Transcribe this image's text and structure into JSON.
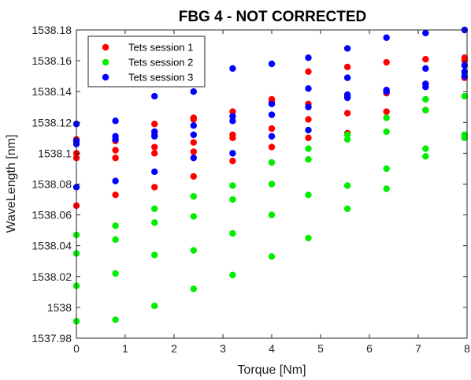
{
  "chart_data": {
    "type": "scatter",
    "title": "FBG 4 - NOT CORRECTED",
    "xlabel": "Torque [Nm]",
    "ylabel": "WaveLength [nm]",
    "xlim": [
      0,
      8
    ],
    "ylim": [
      1537.98,
      1538.18
    ],
    "xticks": [
      0,
      1,
      2,
      3,
      4,
      5,
      6,
      7,
      8
    ],
    "xtick_labels": [
      "0",
      "1",
      "2",
      "3",
      "4",
      "5",
      "6",
      "7",
      "8"
    ],
    "yticks": [
      1537.98,
      1538,
      1538.02,
      1538.04,
      1538.06,
      1538.08,
      1538.1,
      1538.12,
      1538.14,
      1538.16,
      1538.18
    ],
    "ytick_labels": [
      "1537.98",
      "1538",
      "1538.02",
      "1538.04",
      "1538.06",
      "1538.08",
      "1538.1",
      "1538.12",
      "1538.14",
      "1538.16",
      "1538.18"
    ],
    "grid": false,
    "legend_position": "top-left",
    "series": [
      {
        "name": "Tets session 1",
        "color": "#ff0000",
        "x": [
          0,
          0,
          0,
          0,
          0.8,
          0.8,
          0.8,
          0.8,
          1.6,
          1.6,
          1.6,
          1.6,
          1.6,
          2.4,
          2.4,
          2.4,
          2.4,
          2.4,
          3.2,
          3.2,
          3.2,
          3.2,
          4,
          4,
          4,
          4,
          4.75,
          4.75,
          4.75,
          4.75,
          5.55,
          5.55,
          5.55,
          5.55,
          6.35,
          6.35,
          6.35,
          7.15,
          7.15,
          7.15,
          7.95,
          7.95,
          7.95
        ],
        "y": [
          1538.066,
          1538.097,
          1538.1,
          1538.109,
          1538.073,
          1538.097,
          1538.102,
          1538.108,
          1538.078,
          1538.1,
          1538.104,
          1538.112,
          1538.119,
          1538.085,
          1538.101,
          1538.107,
          1538.122,
          1538.123,
          1538.095,
          1538.11,
          1538.112,
          1538.127,
          1538.104,
          1538.116,
          1538.133,
          1538.135,
          1538.11,
          1538.122,
          1538.132,
          1538.153,
          1538.113,
          1538.126,
          1538.137,
          1538.156,
          1538.127,
          1538.139,
          1538.159,
          1538.128,
          1538.145,
          1538.161,
          1538.149,
          1538.16,
          1538.162
        ]
      },
      {
        "name": "Tets session 2",
        "color": "#00ee00",
        "x": [
          0,
          0,
          0,
          0,
          0.8,
          0.8,
          0.8,
          0.8,
          1.6,
          1.6,
          1.6,
          1.6,
          2.4,
          2.4,
          2.4,
          2.4,
          3.2,
          3.2,
          3.2,
          3.2,
          4,
          4,
          4,
          4,
          4.75,
          4.75,
          4.75,
          4.75,
          5.55,
          5.55,
          5.55,
          5.55,
          6.35,
          6.35,
          6.35,
          6.35,
          7.15,
          7.15,
          7.15,
          7.15,
          7.95,
          7.95,
          7.95,
          7.95
        ],
        "y": [
          1537.991,
          1538.014,
          1538.035,
          1538.047,
          1537.992,
          1538.022,
          1538.044,
          1538.053,
          1538.001,
          1538.034,
          1538.055,
          1538.064,
          1538.012,
          1538.037,
          1538.059,
          1538.072,
          1538.021,
          1538.048,
          1538.07,
          1538.079,
          1538.033,
          1538.06,
          1538.08,
          1538.094,
          1538.045,
          1538.073,
          1538.096,
          1538.103,
          1538.064,
          1538.079,
          1538.109,
          1538.112,
          1538.077,
          1538.09,
          1538.114,
          1538.123,
          1538.098,
          1538.103,
          1538.128,
          1538.135,
          1538.11,
          1538.112,
          1538.137,
          1538.152
        ]
      },
      {
        "name": "Tets session 3",
        "color": "#0000ff",
        "x": [
          0,
          0,
          0,
          0,
          0.8,
          0.8,
          0.8,
          0.8,
          1.6,
          1.6,
          1.6,
          1.6,
          2.4,
          2.4,
          2.4,
          2.4,
          3.2,
          3.2,
          3.2,
          3.2,
          4,
          4,
          4,
          4,
          4.75,
          4.75,
          4.75,
          4.75,
          5.55,
          5.55,
          5.55,
          5.55,
          6.35,
          6.35,
          6.35,
          7.15,
          7.15,
          7.15,
          7.15,
          7.95,
          7.95,
          7.95,
          7.95
        ],
        "y": [
          1538.078,
          1538.106,
          1538.108,
          1538.119,
          1538.082,
          1538.109,
          1538.111,
          1538.121,
          1538.088,
          1538.111,
          1538.114,
          1538.137,
          1538.097,
          1538.112,
          1538.118,
          1538.14,
          1538.1,
          1538.121,
          1538.124,
          1538.155,
          1538.111,
          1538.125,
          1538.132,
          1538.158,
          1538.115,
          1538.13,
          1538.142,
          1538.162,
          1538.136,
          1538.138,
          1538.149,
          1538.168,
          1538.14,
          1538.141,
          1538.175,
          1538.143,
          1538.145,
          1538.155,
          1538.178,
          1538.15,
          1538.153,
          1538.157,
          1538.18
        ]
      }
    ]
  }
}
